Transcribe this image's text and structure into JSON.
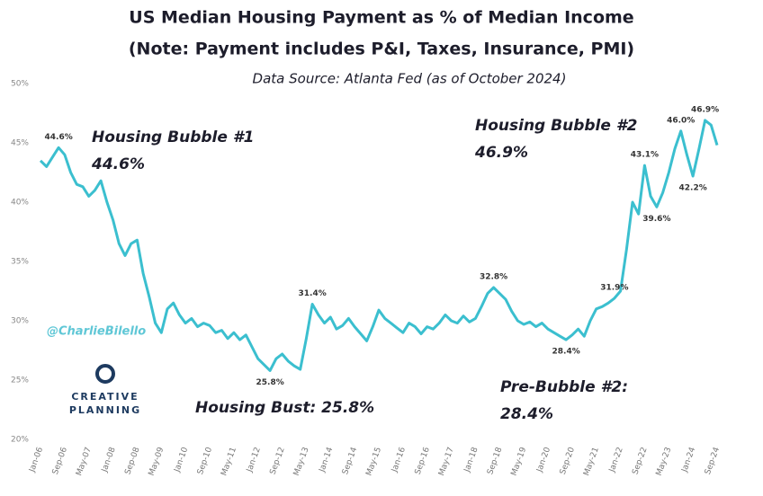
{
  "chart_data": {
    "type": "line",
    "title": "US Median Housing Payment as % of Median Income",
    "subtitle": "(Note: Payment includes P&I, Taxes, Insurance, PMI)",
    "source": "Data Source: Atlanta Fed (as of October 2024)",
    "categories": [
      "Jan-06",
      null,
      null,
      null,
      "Sep-06",
      null,
      null,
      null,
      "May-07",
      null,
      null,
      null,
      "Jan-08",
      null,
      null,
      null,
      "Sep-08",
      null,
      null,
      null,
      "May-09",
      null,
      null,
      null,
      "Jan-10",
      null,
      null,
      null,
      "Sep-10",
      null,
      null,
      null,
      "May-11",
      null,
      null,
      null,
      "Jan-12",
      null,
      null,
      null,
      "Sep-12",
      null,
      null,
      null,
      "May-13",
      null,
      null,
      null,
      "Jan-14",
      null,
      null,
      null,
      "Sep-14",
      null,
      null,
      null,
      "May-15",
      null,
      null,
      null,
      "Jan-16",
      null,
      null,
      null,
      "Sep-16",
      null,
      null,
      null,
      "May-17",
      null,
      null,
      null,
      "Jan-18",
      null,
      null,
      null,
      "Sep-18",
      null,
      null,
      null,
      "May-19",
      null,
      null,
      null,
      "Jan-20",
      null,
      null,
      null,
      "Sep-20",
      null,
      null,
      null,
      "May-21",
      null,
      null,
      null,
      "Jan-22",
      null,
      null,
      null,
      "Sep-22",
      null,
      null,
      null,
      "May-23",
      null,
      null,
      null,
      "Jan-24",
      null,
      null,
      null,
      "Sep-24"
    ],
    "series": [
      {
        "color": "#3bbfcf",
        "values": [
          43.5,
          43.0,
          43.8,
          44.6,
          44.0,
          42.5,
          41.5,
          41.3,
          40.5,
          41.0,
          41.8,
          40.0,
          38.5,
          36.5,
          35.5,
          36.5,
          36.8,
          34.0,
          32.0,
          29.8,
          29.0,
          31.0,
          31.5,
          30.5,
          29.8,
          30.2,
          29.5,
          29.8,
          29.6,
          29.0,
          29.2,
          28.5,
          29.0,
          28.4,
          28.8,
          27.8,
          26.8,
          26.3,
          25.8,
          26.8,
          27.2,
          26.6,
          26.2,
          25.9,
          28.5,
          31.4,
          30.5,
          29.8,
          30.3,
          29.3,
          29.6,
          30.2,
          29.5,
          28.9,
          28.3,
          29.5,
          30.9,
          30.2,
          29.8,
          29.4,
          29.0,
          29.8,
          29.5,
          28.9,
          29.5,
          29.3,
          29.8,
          30.5,
          30.0,
          29.8,
          30.4,
          29.9,
          30.2,
          31.2,
          32.3,
          32.8,
          32.3,
          31.8,
          30.8,
          30.0,
          29.7,
          29.9,
          29.5,
          29.8,
          29.3,
          29.0,
          28.7,
          28.4,
          28.8,
          29.3,
          28.7,
          30.0,
          31.0,
          31.2,
          31.5,
          31.9,
          32.5,
          36.0,
          40.0,
          39.0,
          43.1,
          40.5,
          39.6,
          40.8,
          42.5,
          44.5,
          46.0,
          44.0,
          42.2,
          44.5,
          46.9,
          46.5,
          44.8
        ],
        "value_labels": [
          null,
          null,
          null,
          "44.6%",
          null,
          null,
          null,
          null,
          null,
          null,
          null,
          null,
          null,
          null,
          null,
          null,
          null,
          null,
          null,
          null,
          null,
          null,
          null,
          null,
          null,
          null,
          null,
          null,
          null,
          null,
          null,
          null,
          null,
          null,
          null,
          null,
          null,
          null,
          "25.8%",
          null,
          null,
          null,
          null,
          null,
          null,
          "31.4%",
          null,
          null,
          null,
          null,
          null,
          null,
          null,
          null,
          null,
          null,
          null,
          null,
          null,
          null,
          null,
          null,
          null,
          null,
          null,
          null,
          null,
          null,
          null,
          null,
          null,
          null,
          null,
          null,
          null,
          "32.8%",
          null,
          null,
          null,
          null,
          null,
          null,
          null,
          null,
          null,
          null,
          null,
          "28.4%",
          null,
          null,
          null,
          null,
          null,
          null,
          null,
          "31.9%",
          null,
          null,
          null,
          null,
          "43.1%",
          null,
          "39.6%",
          null,
          null,
          null,
          "46.0%",
          null,
          "42.2%",
          null,
          "46.9%",
          null,
          null
        ]
      }
    ],
    "ylim": [
      20,
      50
    ],
    "yticks": [
      {
        "value": 20,
        "label": "20%"
      },
      {
        "value": 25,
        "label": "25%"
      },
      {
        "value": 30,
        "label": "30%"
      },
      {
        "value": 35,
        "label": "35%"
      },
      {
        "value": 40,
        "label": "40%"
      },
      {
        "value": 45,
        "label": "45%"
      },
      {
        "value": 50,
        "label": "50%"
      }
    ],
    "annotations": [
      "Housing Bubble #1",
      "44.6%",
      "Housing Bubble #2",
      "46.9%",
      "Housing Bust: 25.8%",
      "Pre-Bubble #2:",
      "28.4%"
    ],
    "watermark": "@CharlieBilello",
    "logo": [
      "CREATIVE",
      "PLANNING"
    ]
  }
}
